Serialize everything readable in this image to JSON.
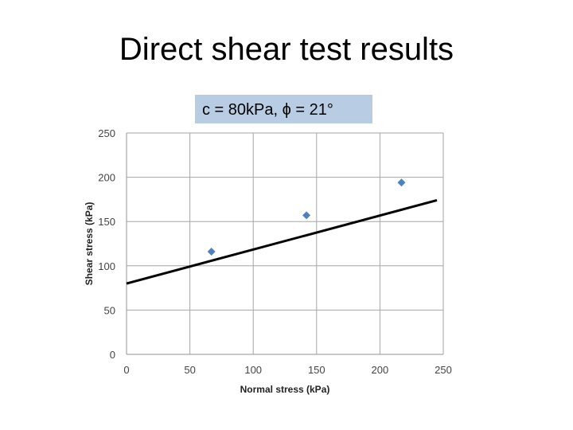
{
  "slide": {
    "title": "Direct shear test results"
  },
  "annotation": {
    "text": "c = 80kPa, ϕ = 21°"
  },
  "colors": {
    "marker": "#4f81bd",
    "fit_line": "#000000",
    "grid": "#a6a6a6",
    "annotation_bg": "#b8cce4"
  },
  "chart_data": {
    "type": "scatter",
    "title": "",
    "xlabel": "Normal stress (kPa)",
    "ylabel": "Shear stress (kPa)",
    "xlim": [
      0,
      250
    ],
    "ylim": [
      0,
      250
    ],
    "x_ticks": [
      0,
      50,
      100,
      150,
      200,
      250
    ],
    "y_ticks": [
      0,
      50,
      100,
      150,
      200,
      250
    ],
    "grid": true,
    "legend": "none",
    "series": [
      {
        "points": [
          {
            "x": 67,
            "y": 116
          },
          {
            "x": 142,
            "y": 157
          },
          {
            "x": 217,
            "y": 194
          }
        ]
      }
    ],
    "fit_line": {
      "intercept": 80,
      "slope": 0.3839,
      "x_range": [
        0,
        245
      ]
    }
  }
}
